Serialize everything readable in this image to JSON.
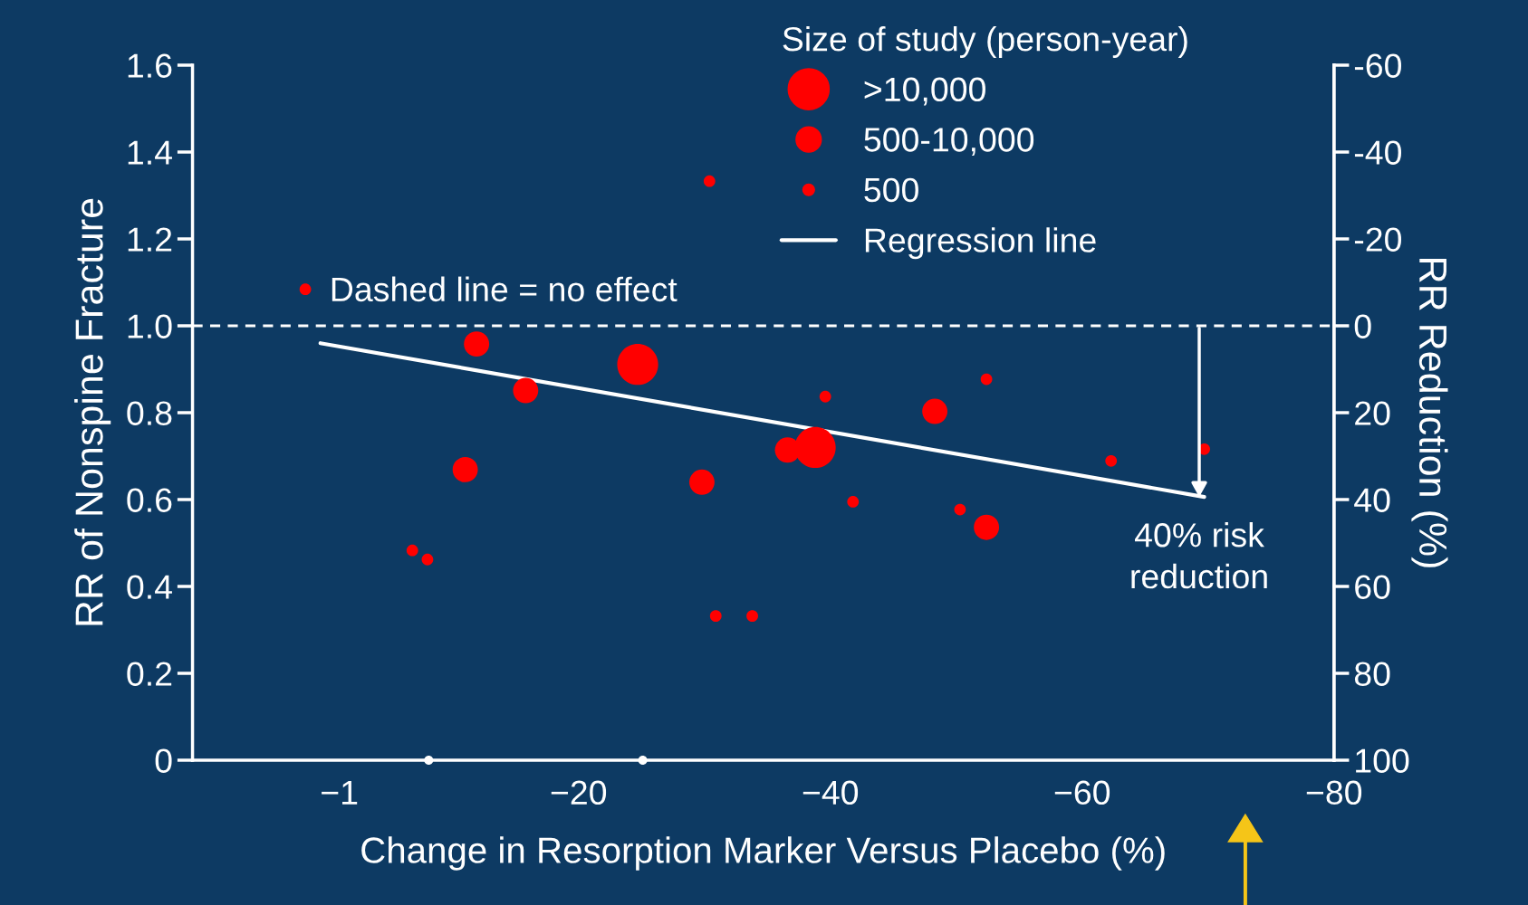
{
  "chart_data": {
    "type": "bubble",
    "xlabel": "Change in Resorption Marker Versus Placebo (%)",
    "ylabel": "RR of Nonspine Fracture",
    "y2label": "RR Reduction (%)",
    "legend_title": "Size of study (person-year)",
    "xlim": [
      10.66,
      -80
    ],
    "xticks": [
      {
        "value": -1,
        "label": "−1"
      },
      {
        "value": -20,
        "label": "−20"
      },
      {
        "value": -40,
        "label": "−40"
      },
      {
        "value": -60,
        "label": "−60"
      },
      {
        "value": -80,
        "label": "−80"
      }
    ],
    "ylim": [
      0,
      1.6
    ],
    "yticks": [
      {
        "value": 0,
        "label": "0"
      },
      {
        "value": 0.2,
        "label": "0.2"
      },
      {
        "value": 0.4,
        "label": "0.4"
      },
      {
        "value": 0.6,
        "label": "0.6"
      },
      {
        "value": 0.8,
        "label": "0.8"
      },
      {
        "value": 1.0,
        "label": "1.0"
      },
      {
        "value": 1.2,
        "label": "1.2"
      },
      {
        "value": 1.4,
        "label": "1.4"
      },
      {
        "value": 1.6,
        "label": "1.6"
      }
    ],
    "y2lim": [
      100,
      -60
    ],
    "y2ticks": [
      -60,
      -40,
      -20,
      0,
      20,
      40,
      60,
      80,
      100
    ],
    "grid": false,
    "legend": "top right",
    "ref_lines": [
      {
        "axis": "y",
        "value": 1.0,
        "label": "Dashed line = no effect",
        "color": "#ffffff",
        "line_style": "dashed"
      }
    ],
    "annotations": [
      {
        "text": "40% risk\nreduction",
        "x": -69.3,
        "y": 0.6
      }
    ],
    "series": [
      {
        "type": "scatter",
        "name": ">10,000",
        "color": "#ff0000",
        "x": [
          -24.7,
          -38.8
        ],
        "values": [
          0.911,
          0.72
        ],
        "sizes": [
          1,
          1
        ]
      },
      {
        "type": "scatter",
        "name": "500-10,000",
        "color": "#ff0000",
        "x": [
          -11.9,
          -15.8,
          -11.0,
          -29.8,
          -36.6,
          -48.3,
          -52.4
        ],
        "values": [
          0.958,
          0.851,
          0.669,
          0.64,
          0.714,
          0.803,
          0.536
        ],
        "sizes": [
          0.38,
          0.38,
          0.38,
          0.38,
          0.38,
          0.38,
          0.38
        ]
      },
      {
        "type": "scatter",
        "name": "500",
        "color": "#ff0000",
        "x": [
          1.7,
          -30.4,
          -6.8,
          -8.0,
          -30.9,
          -33.8,
          -39.6,
          -41.8,
          -52.4,
          -50.3,
          -62.3,
          -69.7
        ],
        "values": [
          1.084,
          1.333,
          0.483,
          0.462,
          0.332,
          0.332,
          0.837,
          0.595,
          0.877,
          0.577,
          0.689,
          0.716
        ],
        "sizes": [
          0.08,
          0.08,
          0.08,
          0.08,
          0.08,
          0.08,
          0.08,
          0.08,
          0.08,
          0.08,
          0.08,
          0.08
        ]
      },
      {
        "type": "line",
        "name": "Regression line",
        "color": "#ffffff",
        "x": [
          0.5,
          -69.7
        ],
        "values": [
          0.96,
          0.606
        ]
      },
      {
        "type": "scatter",
        "color": "#ffffff",
        "x": [
          -8.1,
          -25.1
        ],
        "values": [
          0,
          0
        ],
        "sizes": [
          0.05,
          0.05
        ]
      }
    ]
  }
}
